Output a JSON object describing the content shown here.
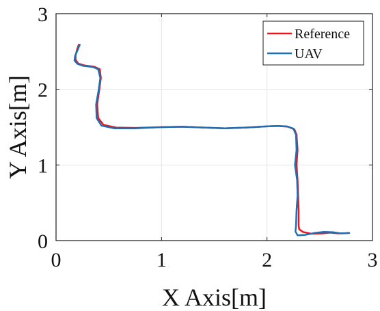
{
  "chart_data": {
    "type": "line",
    "xlabel": "X Axis[m]",
    "ylabel": "Y Axis[m]",
    "xlim": [
      0,
      3
    ],
    "ylim": [
      0,
      3
    ],
    "xticks": [
      "0",
      "1",
      "2",
      "3"
    ],
    "yticks": [
      "0",
      "1",
      "2",
      "3"
    ],
    "grid": true,
    "legend_position": "top-right",
    "series": [
      {
        "name": "Reference",
        "color": "#e8161e",
        "points": [
          [
            0.215,
            2.59
          ],
          [
            0.2,
            2.53
          ],
          [
            0.185,
            2.45
          ],
          [
            0.185,
            2.39
          ],
          [
            0.21,
            2.34
          ],
          [
            0.27,
            2.315
          ],
          [
            0.36,
            2.3
          ],
          [
            0.415,
            2.265
          ],
          [
            0.425,
            2.15
          ],
          [
            0.41,
            2.0
          ],
          [
            0.39,
            1.8
          ],
          [
            0.4,
            1.62
          ],
          [
            0.45,
            1.53
          ],
          [
            0.57,
            1.495
          ],
          [
            0.75,
            1.49
          ],
          [
            1.0,
            1.5
          ],
          [
            1.2,
            1.505
          ],
          [
            1.4,
            1.495
          ],
          [
            1.6,
            1.485
          ],
          [
            1.8,
            1.495
          ],
          [
            2.0,
            1.51
          ],
          [
            2.1,
            1.515
          ],
          [
            2.2,
            1.505
          ],
          [
            2.26,
            1.47
          ],
          [
            2.28,
            1.4
          ],
          [
            2.29,
            1.2
          ],
          [
            2.28,
            1.0
          ],
          [
            2.29,
            0.8
          ],
          [
            2.295,
            0.6
          ],
          [
            2.3,
            0.4
          ],
          [
            2.3,
            0.2
          ],
          [
            2.305,
            0.15
          ],
          [
            2.34,
            0.115
          ],
          [
            2.42,
            0.09
          ],
          [
            2.52,
            0.095
          ],
          [
            2.6,
            0.105
          ],
          [
            2.68,
            0.095
          ],
          [
            2.78,
            0.1
          ]
        ]
      },
      {
        "name": "UAV",
        "color": "#1b6fb5",
        "points": [
          [
            0.225,
            2.59
          ],
          [
            0.205,
            2.52
          ],
          [
            0.18,
            2.44
          ],
          [
            0.175,
            2.38
          ],
          [
            0.205,
            2.335
          ],
          [
            0.26,
            2.31
          ],
          [
            0.35,
            2.295
          ],
          [
            0.4,
            2.265
          ],
          [
            0.42,
            2.15
          ],
          [
            0.405,
            2.0
          ],
          [
            0.38,
            1.8
          ],
          [
            0.385,
            1.62
          ],
          [
            0.43,
            1.52
          ],
          [
            0.55,
            1.485
          ],
          [
            0.75,
            1.485
          ],
          [
            1.0,
            1.5
          ],
          [
            1.2,
            1.505
          ],
          [
            1.4,
            1.495
          ],
          [
            1.6,
            1.485
          ],
          [
            1.8,
            1.495
          ],
          [
            2.0,
            1.51
          ],
          [
            2.1,
            1.515
          ],
          [
            2.19,
            1.51
          ],
          [
            2.25,
            1.48
          ],
          [
            2.275,
            1.4
          ],
          [
            2.28,
            1.2
          ],
          [
            2.265,
            1.0
          ],
          [
            2.285,
            0.8
          ],
          [
            2.29,
            0.6
          ],
          [
            2.28,
            0.4
          ],
          [
            2.275,
            0.2
          ],
          [
            2.27,
            0.12
          ],
          [
            2.29,
            0.07
          ],
          [
            2.36,
            0.075
          ],
          [
            2.45,
            0.1
          ],
          [
            2.54,
            0.115
          ],
          [
            2.63,
            0.11
          ],
          [
            2.7,
            0.095
          ],
          [
            2.78,
            0.1
          ]
        ]
      }
    ]
  }
}
